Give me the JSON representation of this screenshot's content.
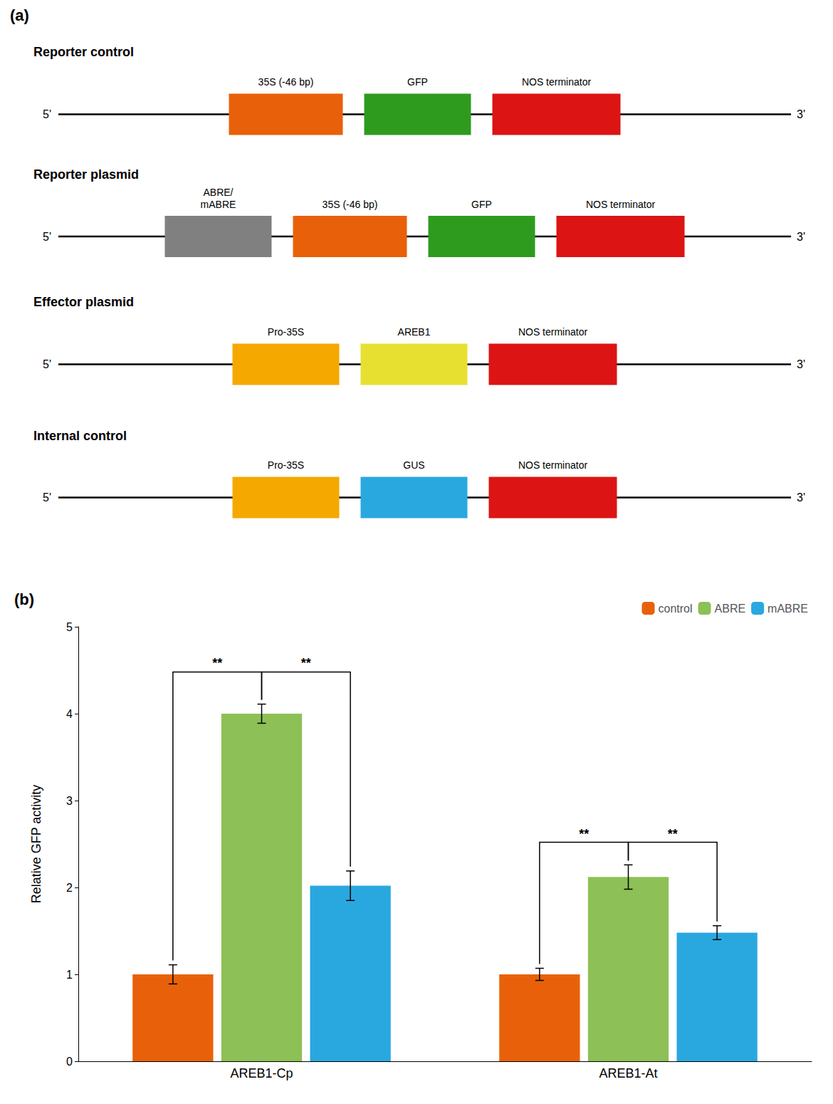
{
  "chart_data": [
    {
      "type": "diagram",
      "panel_label": "(a)",
      "end_labels": [
        "5'",
        "3'"
      ],
      "rows": [
        {
          "title": "Reporter control",
          "blocks": [
            {
              "label": "35S (-46 bp)",
              "color": "#E8610A"
            },
            {
              "label": "GFP",
              "color": "#2E9B1F"
            },
            {
              "label": "NOS terminator",
              "color": "#DC1414"
            }
          ]
        },
        {
          "title": "Reporter plasmid",
          "blocks": [
            {
              "label": "ABRE/\nmABRE",
              "color": "#808080"
            },
            {
              "label": "35S (-46 bp)",
              "color": "#E8610A"
            },
            {
              "label": "GFP",
              "color": "#2E9B1F"
            },
            {
              "label": "NOS terminator",
              "color": "#DC1414"
            }
          ]
        },
        {
          "title": "Effector plasmid",
          "blocks": [
            {
              "label": "Pro-35S",
              "color": "#F5A800"
            },
            {
              "label": "AREB1",
              "color": "#E8E030"
            },
            {
              "label": "NOS terminator",
              "color": "#DC1414"
            }
          ]
        },
        {
          "title": "Internal control",
          "blocks": [
            {
              "label": "Pro-35S",
              "color": "#F5A800"
            },
            {
              "label": "GUS",
              "color": "#29A8E0"
            },
            {
              "label": "NOS terminator",
              "color": "#DC1414"
            }
          ]
        }
      ]
    },
    {
      "type": "bar",
      "panel_label": "(b)",
      "categories": [
        "AREB1-Cp",
        "AREB1-At"
      ],
      "series": [
        {
          "name": "control",
          "color": "#E8610A",
          "values": [
            1.0,
            1.0
          ],
          "errors": [
            0.11,
            0.07
          ]
        },
        {
          "name": "ABRE",
          "color": "#8DC056",
          "values": [
            4.0,
            2.12
          ],
          "errors": [
            0.11,
            0.14
          ]
        },
        {
          "name": "mABRE",
          "color": "#29A8E0",
          "values": [
            2.02,
            1.48
          ],
          "errors": [
            0.17,
            0.08
          ]
        }
      ],
      "brackets": [
        {
          "category": "AREB1-Cp",
          "from": "control",
          "to": "ABRE",
          "height": 4.48,
          "label": "**"
        },
        {
          "category": "AREB1-Cp",
          "from": "ABRE",
          "to": "mABRE",
          "height": 4.48,
          "label": "**"
        },
        {
          "category": "AREB1-At",
          "from": "control",
          "to": "ABRE",
          "height": 2.52,
          "label": "**"
        },
        {
          "category": "AREB1-At",
          "from": "ABRE",
          "to": "mABRE",
          "height": 2.52,
          "label": "**"
        }
      ],
      "ylabel": "Relative GFP activity",
      "ylim": [
        0,
        5
      ],
      "yticks": [
        0,
        1,
        2,
        3,
        4,
        5
      ],
      "grid": false,
      "legend": "upper right"
    }
  ]
}
